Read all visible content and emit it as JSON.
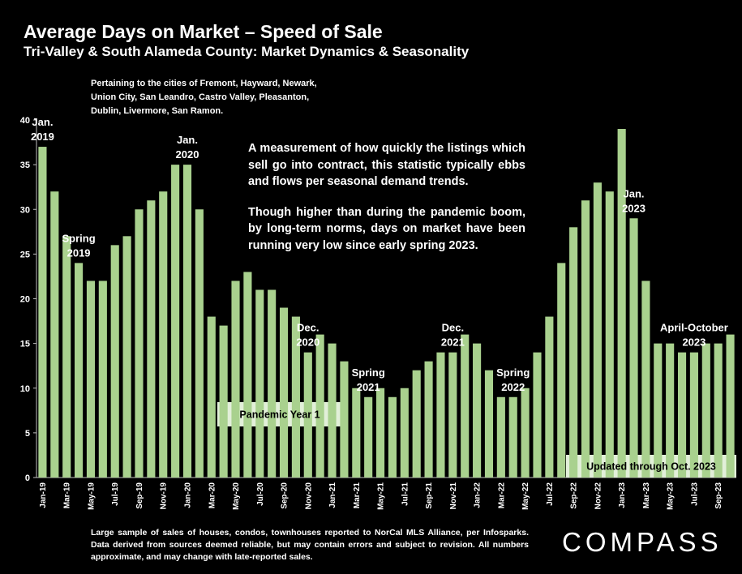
{
  "title": "Average Days on Market – Speed of Sale",
  "subtitle": "Tri-Valley & South Alameda County: Market Dynamics & Seasonality",
  "cities_note": "Pertaining to the cities of Fremont, Hayward, Newark, Union City, San Leandro, Castro Valley, Pleasanton, Dublin, Livermore, San Ramon.",
  "description": [
    "A measurement of how quickly the listings which sell go into contract, this statistic typically ebbs and flows per seasonal demand trends.",
    "Though higher than during the pandemic boom, by long-term norms, days on market have been running very low since early spring 2023."
  ],
  "footnote": "Large sample of sales of houses, condos, townhouses reported to NorCal MLS Alliance, per Infosparks. Data derived from sources deemed reliable, but may contain errors and subject to revision. All numbers approximate, and may change with late-reported sales.",
  "logo": "COMPASS",
  "colors": {
    "bar": "#a9d18e",
    "box_fill": "#e2efd9",
    "background": "#000000",
    "text": "#ffffff"
  },
  "chart_data": {
    "type": "bar",
    "ylim": [
      0,
      40
    ],
    "yticks": [
      0,
      5,
      10,
      15,
      20,
      25,
      30,
      35,
      40
    ],
    "grid": false,
    "x": [
      "Jan-19",
      "Feb-19",
      "Mar-19",
      "Apr-19",
      "May-19",
      "Jun-19",
      "Jul-19",
      "Aug-19",
      "Sep-19",
      "Oct-19",
      "Nov-19",
      "Dec-19",
      "Jan-20",
      "Feb-20",
      "Mar-20",
      "Apr-20",
      "May-20",
      "Jun-20",
      "Jul-20",
      "Aug-20",
      "Sep-20",
      "Oct-20",
      "Nov-20",
      "Dec-20",
      "Jan-21",
      "Feb-21",
      "Mar-21",
      "Apr-21",
      "May-21",
      "Jun-21",
      "Jul-21",
      "Aug-21",
      "Sep-21",
      "Oct-21",
      "Nov-21",
      "Dec-21",
      "Jan-22",
      "Feb-22",
      "Mar-22",
      "Apr-22",
      "May-22",
      "Jun-22",
      "Jul-22",
      "Aug-22",
      "Sep-22",
      "Oct-22",
      "Nov-22",
      "Dec-22",
      "Jan-23",
      "Feb-23",
      "Mar-23",
      "Apr-23",
      "May-23",
      "Jun-23",
      "Jul-23",
      "Aug-23",
      "Sep-23",
      "Oct-23"
    ],
    "values": [
      37,
      32,
      27,
      24,
      22,
      22,
      26,
      27,
      30,
      31,
      32,
      35,
      35,
      30,
      18,
      17,
      22,
      23,
      21,
      21,
      19,
      18,
      14,
      16,
      15,
      13,
      10,
      9,
      10,
      9,
      10,
      12,
      13,
      14,
      14,
      16,
      15,
      12,
      9,
      9,
      10,
      14,
      18,
      24,
      28,
      31,
      33,
      32,
      39,
      29,
      22,
      15,
      15,
      14,
      14,
      15,
      15,
      16
    ],
    "x_tick_labels": [
      "Jan-19",
      "Mar-19",
      "May-19",
      "Jul-19",
      "Sep-19",
      "Nov-19",
      "Jan-20",
      "Mar-20",
      "May-20",
      "Jul-20",
      "Sep-20",
      "Nov-20",
      "Jan-21",
      "Mar-21",
      "May-21",
      "Jul-21",
      "Sep-21",
      "Nov-21",
      "Jan-22",
      "Mar-22",
      "May-22",
      "Jul-22",
      "Sep-22",
      "Nov-22",
      "Jan-23",
      "Mar-23",
      "May-23",
      "Jul-23",
      "Sep-23"
    ],
    "annotations": [
      {
        "at": "Jan-19",
        "lines": [
          "Jan.",
          "2019"
        ]
      },
      {
        "at": "Apr-19",
        "lines": [
          "Spring",
          "2019"
        ]
      },
      {
        "at": "Jan-20",
        "lines": [
          "Jan.",
          "2020"
        ]
      },
      {
        "at": "Nov-20",
        "lines": [
          "Dec.",
          "2020"
        ]
      },
      {
        "at": "Apr-21",
        "lines": [
          "Spring",
          "2021"
        ]
      },
      {
        "at": "Nov-21",
        "lines": [
          "Dec.",
          "2021"
        ]
      },
      {
        "at": "Apr-22",
        "lines": [
          "Spring",
          "2022"
        ]
      },
      {
        "at": "Feb-23",
        "lines": [
          "Jan.",
          "2023"
        ]
      },
      {
        "at": "Jul-23",
        "lines": [
          "April-October",
          "2023"
        ]
      }
    ],
    "boxes": [
      {
        "label": "Pandemic Year 1"
      },
      {
        "label": "Updated through Oct. 2023"
      }
    ]
  }
}
